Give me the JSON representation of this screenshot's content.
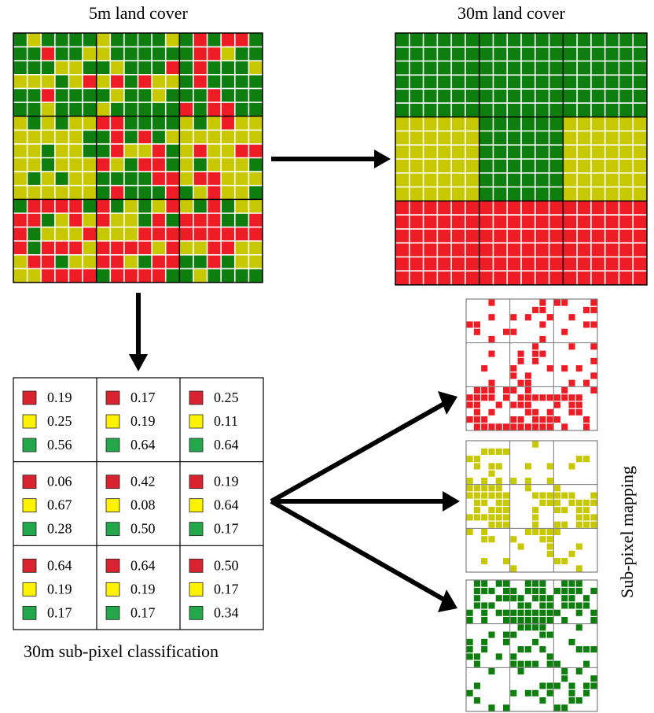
{
  "titles": {
    "fine_map": "5m land cover",
    "coarse_map": "30m land cover",
    "classification": "30m sub-pixel classification",
    "mapping": "Sub-pixel mapping"
  },
  "colors": {
    "red": "#ee1c24",
    "yellow": "#c8c800",
    "green": "#0e7e0e",
    "swatch_red": "#d9232e",
    "swatch_yellow": "#fff200",
    "swatch_green": "#22a84a",
    "white": "#ffffff",
    "block_border": "#000000"
  },
  "coarse_classes": [
    [
      "green",
      "green",
      "green"
    ],
    [
      "yellow",
      "green",
      "yellow"
    ],
    [
      "red",
      "red",
      "red"
    ]
  ],
  "class_order": [
    "red",
    "yellow",
    "green"
  ],
  "fractions": [
    [
      [
        "0.19",
        "0.25",
        "0.56"
      ],
      [
        "0.17",
        "0.19",
        "0.64"
      ],
      [
        "0.25",
        "0.11",
        "0.64"
      ]
    ],
    [
      [
        "0.06",
        "0.67",
        "0.28"
      ],
      [
        "0.42",
        "0.08",
        "0.50"
      ],
      [
        "0.19",
        "0.64",
        "0.17"
      ]
    ],
    [
      [
        "0.64",
        "0.19",
        "0.17"
      ],
      [
        "0.64",
        "0.19",
        "0.17"
      ],
      [
        "0.50",
        "0.17",
        "0.34"
      ]
    ]
  ],
  "mapping_panels": [
    "red",
    "yellow",
    "green"
  ]
}
